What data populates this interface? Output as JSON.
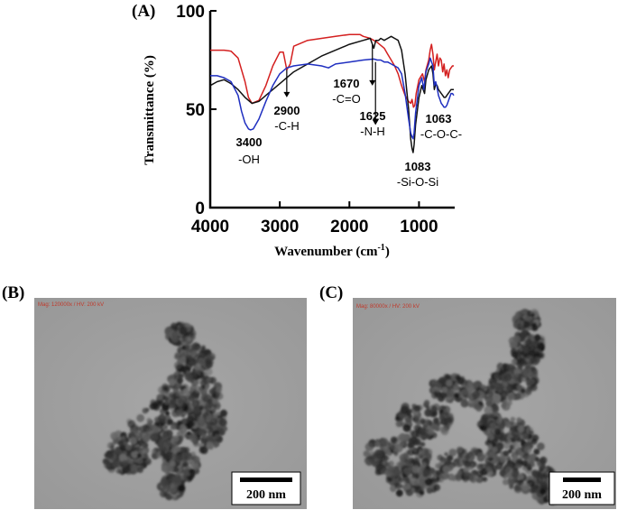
{
  "figure": {
    "panel_a_label": "(A)",
    "panel_b_label": "(B)",
    "panel_c_label": "(C)"
  },
  "chart_data": {
    "type": "line",
    "title": "",
    "xlabel": "Wavenumber (cm",
    "xlabel_sup": "-1",
    "xlabel_close": ")",
    "ylabel": "Transmittance (%)",
    "xlim": [
      4000,
      500
    ],
    "ylim": [
      0,
      100
    ],
    "x_ticks": [
      4000,
      3000,
      2000,
      1000
    ],
    "y_ticks": [
      0,
      50,
      100
    ],
    "grid": false,
    "series": [
      {
        "color": "#d42020",
        "points": [
          [
            4000,
            80
          ],
          [
            3800,
            80
          ],
          [
            3700,
            79.5
          ],
          [
            3600,
            76
          ],
          [
            3500,
            64
          ],
          [
            3450,
            56
          ],
          [
            3400,
            53
          ],
          [
            3300,
            54.5
          ],
          [
            3200,
            62
          ],
          [
            3100,
            72
          ],
          [
            3000,
            79
          ],
          [
            2950,
            79
          ],
          [
            2900,
            70
          ],
          [
            2850,
            73
          ],
          [
            2800,
            82
          ],
          [
            2600,
            85
          ],
          [
            2400,
            86
          ],
          [
            2200,
            87
          ],
          [
            2000,
            88
          ],
          [
            1850,
            88
          ],
          [
            1800,
            87
          ],
          [
            1700,
            86
          ],
          [
            1650,
            85
          ],
          [
            1600,
            84
          ],
          [
            1500,
            81
          ],
          [
            1450,
            78
          ],
          [
            1400,
            75
          ],
          [
            1350,
            72
          ],
          [
            1300,
            68
          ],
          [
            1250,
            62
          ],
          [
            1200,
            57
          ],
          [
            1150,
            54
          ],
          [
            1120,
            53
          ],
          [
            1100,
            55
          ],
          [
            1080,
            51
          ],
          [
            1060,
            52
          ],
          [
            1040,
            58
          ],
          [
            1000,
            65
          ],
          [
            950,
            68
          ],
          [
            920,
            64
          ],
          [
            900,
            70
          ],
          [
            860,
            75
          ],
          [
            840,
            80
          ],
          [
            820,
            83
          ],
          [
            800,
            78
          ],
          [
            780,
            70
          ],
          [
            760,
            74
          ],
          [
            740,
            78
          ],
          [
            720,
            72
          ],
          [
            700,
            76
          ],
          [
            680,
            75
          ],
          [
            660,
            69
          ],
          [
            640,
            73
          ],
          [
            620,
            67
          ],
          [
            600,
            70
          ],
          [
            580,
            66
          ],
          [
            560,
            70
          ],
          [
            540,
            71
          ],
          [
            520,
            72
          ],
          [
            500,
            72
          ]
        ]
      },
      {
        "color": "#111111",
        "points": [
          [
            4000,
            62
          ],
          [
            3900,
            64
          ],
          [
            3800,
            65
          ],
          [
            3700,
            63
          ],
          [
            3600,
            60
          ],
          [
            3500,
            56
          ],
          [
            3400,
            53
          ],
          [
            3300,
            54
          ],
          [
            3200,
            57
          ],
          [
            3100,
            60
          ],
          [
            3000,
            63
          ],
          [
            2900,
            66
          ],
          [
            2800,
            69
          ],
          [
            2600,
            73
          ],
          [
            2400,
            77
          ],
          [
            2200,
            80
          ],
          [
            2000,
            83
          ],
          [
            1800,
            85
          ],
          [
            1700,
            86
          ],
          [
            1650,
            81
          ],
          [
            1620,
            85
          ],
          [
            1580,
            85
          ],
          [
            1550,
            86
          ],
          [
            1500,
            85
          ],
          [
            1450,
            86
          ],
          [
            1400,
            87
          ],
          [
            1350,
            86
          ],
          [
            1300,
            85
          ],
          [
            1250,
            80
          ],
          [
            1200,
            68
          ],
          [
            1150,
            50
          ],
          [
            1120,
            35
          ],
          [
            1100,
            30
          ],
          [
            1085,
            28
          ],
          [
            1070,
            32
          ],
          [
            1050,
            42
          ],
          [
            1000,
            56
          ],
          [
            960,
            62
          ],
          [
            920,
            58
          ],
          [
            900,
            65
          ],
          [
            860,
            70
          ],
          [
            820,
            72
          ],
          [
            800,
            68
          ],
          [
            780,
            60
          ],
          [
            760,
            63
          ],
          [
            740,
            62
          ],
          [
            720,
            60
          ],
          [
            700,
            59
          ],
          [
            680,
            58
          ],
          [
            660,
            57
          ],
          [
            640,
            56
          ],
          [
            620,
            56
          ],
          [
            600,
            57
          ],
          [
            580,
            58
          ],
          [
            560,
            59
          ],
          [
            540,
            60
          ],
          [
            520,
            60
          ],
          [
            500,
            60
          ]
        ]
      },
      {
        "color": "#1f2fc0",
        "points": [
          [
            4000,
            67
          ],
          [
            3900,
            67
          ],
          [
            3800,
            66
          ],
          [
            3700,
            64
          ],
          [
            3600,
            57
          ],
          [
            3550,
            49
          ],
          [
            3500,
            43
          ],
          [
            3450,
            40
          ],
          [
            3420,
            39.5
          ],
          [
            3380,
            40
          ],
          [
            3300,
            45
          ],
          [
            3200,
            54
          ],
          [
            3100,
            62
          ],
          [
            3000,
            68
          ],
          [
            2900,
            71
          ],
          [
            2800,
            72
          ],
          [
            2600,
            73
          ],
          [
            2400,
            72
          ],
          [
            2300,
            71
          ],
          [
            2200,
            73
          ],
          [
            2000,
            74
          ],
          [
            1800,
            75
          ],
          [
            1650,
            75.5
          ],
          [
            1600,
            75
          ],
          [
            1550,
            75
          ],
          [
            1500,
            74
          ],
          [
            1450,
            74
          ],
          [
            1400,
            73
          ],
          [
            1350,
            72
          ],
          [
            1300,
            71
          ],
          [
            1250,
            68
          ],
          [
            1200,
            58
          ],
          [
            1150,
            45
          ],
          [
            1120,
            38
          ],
          [
            1100,
            36
          ],
          [
            1085,
            35
          ],
          [
            1070,
            38
          ],
          [
            1050,
            48
          ],
          [
            1000,
            62
          ],
          [
            960,
            66
          ],
          [
            930,
            60
          ],
          [
            900,
            69
          ],
          [
            860,
            73
          ],
          [
            840,
            76
          ],
          [
            800,
            72
          ],
          [
            780,
            62
          ],
          [
            760,
            64
          ],
          [
            740,
            61
          ],
          [
            720,
            57
          ],
          [
            700,
            55
          ],
          [
            680,
            53
          ],
          [
            660,
            52
          ],
          [
            640,
            51
          ],
          [
            620,
            51
          ],
          [
            600,
            52
          ],
          [
            560,
            56
          ],
          [
            540,
            58
          ],
          [
            520,
            58
          ],
          [
            500,
            57
          ]
        ]
      }
    ],
    "annotations": [
      {
        "value": "3400",
        "group": "-OH",
        "color": "#d42020"
      },
      {
        "value": "2900",
        "group": "-C-H",
        "color": "#d42020"
      },
      {
        "value": "1670",
        "group": "-C=O",
        "color": "#d42020"
      },
      {
        "value": "1625",
        "group": "-N-H",
        "color": "#d42020"
      },
      {
        "value": "1083",
        "group": "-Si-O-Si",
        "color": "#d42020"
      },
      {
        "value": "1063",
        "group": "-C-O-C-",
        "color": "#d42020"
      }
    ]
  },
  "tem_b": {
    "meta": "Mag: 120000x / HV: 200 kV",
    "scale_label": "200 nm"
  },
  "tem_c": {
    "meta": "Mag: 80000x / HV: 200 kV",
    "scale_label": "200 nm"
  }
}
